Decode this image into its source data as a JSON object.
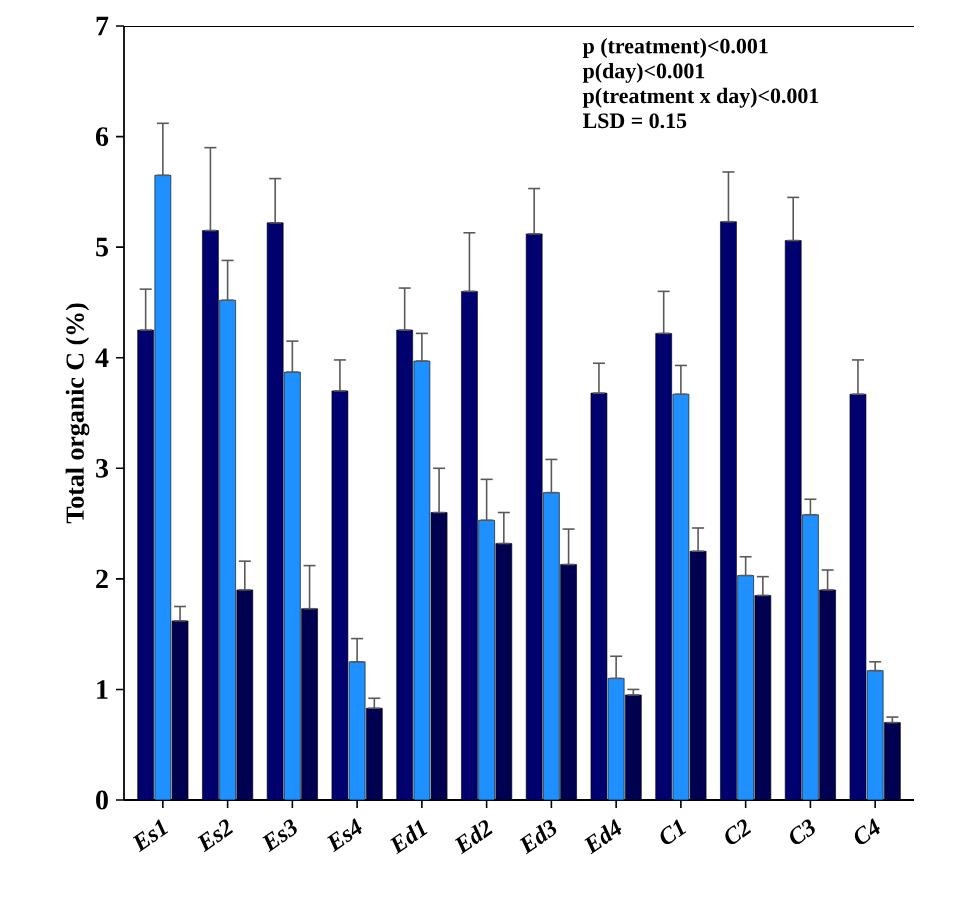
{
  "chart_data": {
    "type": "bar",
    "ylabel": "Total organic C (%)",
    "categories": [
      "Es1",
      "Es2",
      "Es3",
      "Es4",
      "Ed1",
      "Ed2",
      "Ed3",
      "Ed4",
      "C1",
      "C2",
      "C3",
      "C4"
    ],
    "series": [
      {
        "color": "#00006e",
        "values": [
          4.25,
          5.15,
          5.22,
          3.7,
          4.25,
          4.6,
          5.12,
          3.68,
          4.22,
          5.23,
          5.06,
          3.67
        ],
        "errors": [
          [
            4.25,
            4.62
          ],
          [
            5.15,
            5.9
          ],
          [
            5.22,
            5.62
          ],
          [
            3.7,
            3.98
          ],
          [
            4.25,
            4.63
          ],
          [
            4.6,
            5.13
          ],
          [
            5.12,
            5.53
          ],
          [
            3.68,
            3.95
          ],
          [
            4.22,
            4.6
          ],
          [
            5.23,
            5.68
          ],
          [
            5.06,
            5.45
          ],
          [
            3.67,
            3.98
          ]
        ]
      },
      {
        "color": "#1e90ff",
        "values": [
          5.65,
          4.52,
          3.87,
          1.25,
          3.97,
          2.53,
          2.78,
          1.1,
          3.67,
          2.03,
          2.58,
          1.17
        ],
        "errors": [
          [
            5.65,
            6.12
          ],
          [
            4.52,
            4.88
          ],
          [
            3.87,
            4.15
          ],
          [
            1.25,
            1.46
          ],
          [
            3.97,
            4.22
          ],
          [
            2.53,
            2.9
          ],
          [
            2.78,
            3.08
          ],
          [
            1.1,
            1.3
          ],
          [
            3.67,
            3.93
          ],
          [
            2.03,
            2.2
          ],
          [
            2.58,
            2.72
          ],
          [
            1.17,
            1.25
          ]
        ]
      },
      {
        "color": "#000050",
        "values": [
          1.62,
          1.9,
          1.73,
          0.83,
          2.6,
          2.32,
          2.13,
          0.95,
          2.25,
          1.85,
          1.9,
          0.7
        ],
        "errors": [
          [
            1.62,
            1.75
          ],
          [
            1.9,
            2.16
          ],
          [
            1.73,
            2.12
          ],
          [
            0.83,
            0.92
          ],
          [
            2.6,
            3.0
          ],
          [
            2.32,
            2.6
          ],
          [
            2.13,
            2.45
          ],
          [
            0.95,
            1.0
          ],
          [
            2.25,
            2.46
          ],
          [
            1.85,
            2.02
          ],
          [
            1.9,
            2.08
          ],
          [
            0.7,
            0.75
          ]
        ]
      }
    ],
    "ylim": [
      0,
      7
    ],
    "yticks": [
      0,
      1,
      2,
      3,
      4,
      5,
      6,
      7
    ],
    "annotations": [
      "p (treatment)<0.001",
      "p(day)<0.001",
      "p(treatment x day)<0.001",
      "LSD = 0.15"
    ]
  }
}
